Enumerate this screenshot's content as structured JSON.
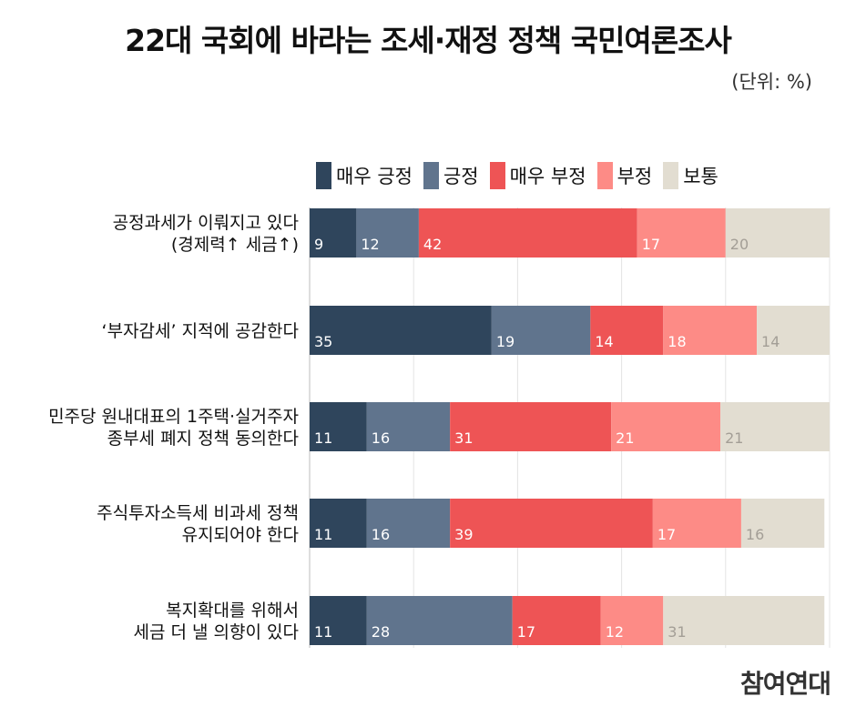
{
  "title": "22대 국회에 바라는 조세·재정 정책 국민여론조사",
  "unit": "(단위: %)",
  "brand": "참여연대",
  "chart_data": {
    "type": "bar",
    "orientation": "horizontal",
    "stacked": true,
    "title": "22대 국회에 바라는 조세·재정 정책 국민여론조사",
    "categories": [
      [
        "공정과세가 이뤄지고 있다",
        "(경제력↑ 세금↑)"
      ],
      [
        "‘부자감세’ 지적에 공감한다"
      ],
      [
        "민주당 원내대표의 1주택·실거주자",
        "종부세 폐지 정책 동의한다"
      ],
      [
        "주식투자소득세 비과세 정책",
        "유지되어야 한다"
      ],
      [
        "복지확대를 위해서",
        "세금 더 낼 의향이 있다"
      ]
    ],
    "series": [
      {
        "name": "매우 긍정",
        "color": "#2f455c",
        "label_color": "#ffffff",
        "values": [
          9,
          35,
          11,
          11,
          11
        ]
      },
      {
        "name": "긍정",
        "color": "#60748d",
        "label_color": "#ffffff",
        "values": [
          12,
          19,
          16,
          16,
          28
        ]
      },
      {
        "name": "매우 부정",
        "color": "#ee5455",
        "label_color": "#ffffff",
        "values": [
          42,
          14,
          31,
          39,
          17
        ]
      },
      {
        "name": "부정",
        "color": "#fd8b86",
        "label_color": "#ffffff",
        "values": [
          17,
          18,
          21,
          17,
          12
        ]
      },
      {
        "name": "보통",
        "color": "#e2ddd1",
        "label_color": "#a39e96",
        "values": [
          20,
          14,
          21,
          16,
          31
        ]
      }
    ],
    "xlim": [
      0,
      100
    ],
    "grid": true,
    "legend_position": "top"
  }
}
